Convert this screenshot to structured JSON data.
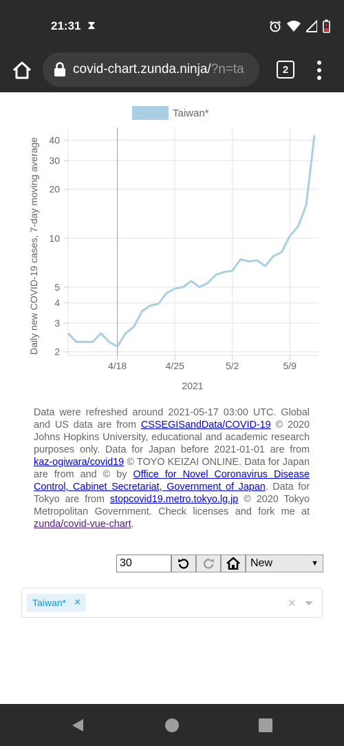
{
  "status": {
    "time": "21:31",
    "hourglass": "⧗"
  },
  "browser": {
    "url_main": "covid-chart.zunda.ninja/",
    "url_dim": "?n=ta",
    "tab_count": "2"
  },
  "chart_data": {
    "type": "line",
    "legend": "Taiwan*",
    "ylabel": "Daily new COVID-19 cases, 7-day moving average",
    "xlabel": "2021",
    "yscale": "log",
    "ylim": [
      1.9,
      48
    ],
    "yticks": [
      2,
      3,
      4,
      5,
      10,
      20,
      30,
      40
    ],
    "ytick_labels": [
      "2",
      "3",
      "4",
      "5",
      "10",
      "20",
      "30",
      "40"
    ],
    "xticks": [
      4,
      11,
      18,
      25
    ],
    "xtick_labels": [
      "4/18",
      "4/25",
      "5/2",
      "5/9"
    ],
    "vline_x": 4,
    "xlim": [
      -2,
      28.5
    ],
    "color": "#a9cfe3",
    "series": [
      {
        "x": [
          -2,
          -1,
          0,
          1,
          2,
          3,
          4,
          5,
          6,
          7,
          8,
          9,
          10,
          11,
          12,
          13,
          14,
          15,
          16,
          17,
          18,
          19,
          20,
          21,
          22,
          23,
          24,
          25,
          26,
          27,
          28
        ],
        "values": [
          2.6,
          2.3,
          2.3,
          2.3,
          2.6,
          2.3,
          2.15,
          2.6,
          2.85,
          3.55,
          3.85,
          3.95,
          4.6,
          4.9,
          5.0,
          5.45,
          5.0,
          5.3,
          5.95,
          6.2,
          6.3,
          7.4,
          7.2,
          7.3,
          6.75,
          7.75,
          8.2,
          10.3,
          11.8,
          16.0,
          43.0
        ]
      }
    ]
  },
  "notes": {
    "p1": "Data were refreshed around 2021-05-17 03:00 UTC. Global and US data are from ",
    "link1": "CSSEGISandData/COVID-19",
    "p2": " © 2020 Johns Hopkins University, educational and academic research purposes only. Data for Japan before 2021-01-01 are from ",
    "link2": "kaz-ogiwara/covid19",
    "p3": " © TOYO KEIZAI ONLINE. Data for Japan are from and © by ",
    "link3": "Office for Novel Coronavirus Disease Control, Cabinet Secretariat, Government of Japan",
    "p4": ". Data for Tokyo are from ",
    "link4": "stopcovid19.metro.tokyo.lg.jp",
    "p5": " © 2020 Tokyo Metropolitan Government. Check licenses and fork me at ",
    "link5": "zunda/covid-vue-chart",
    "p6": "."
  },
  "controls": {
    "days_value": "30",
    "mode_selected": "New"
  },
  "selection": {
    "tag": "Taiwan*",
    "tag_remove": "×",
    "clear": "×"
  }
}
